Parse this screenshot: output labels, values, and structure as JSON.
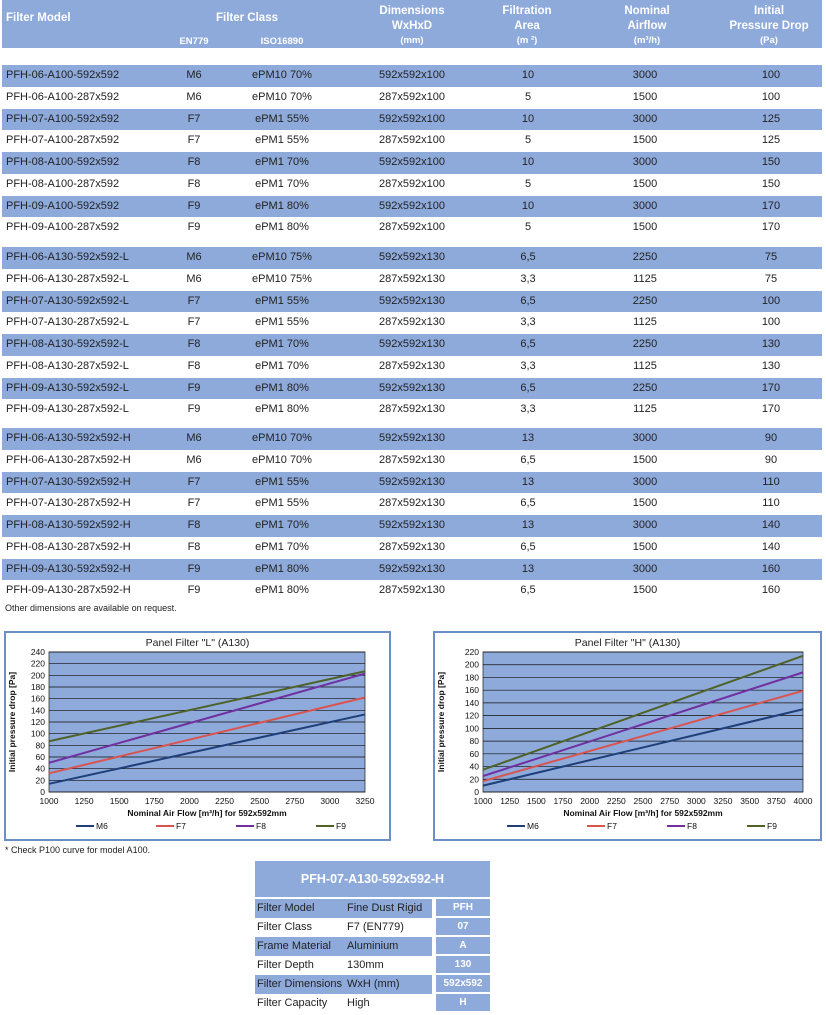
{
  "table": {
    "headers": {
      "model": "Filter Model",
      "filter_class": "Filter Class",
      "en779": "EN779",
      "iso16890": "ISO16890",
      "dimensions_l1": "Dimensions",
      "dimensions_l2": "WxHxD",
      "dimensions_unit": "(mm)",
      "area_l1": "Filtration",
      "area_l2": "Area",
      "area_unit": "(m ²)",
      "airflow_l1": "Nominal",
      "airflow_l2": "Airflow",
      "airflow_unit": "(m³/h)",
      "pressure_l1": "Initial",
      "pressure_l2": "Pressure Drop",
      "pressure_unit": "(Pa)"
    },
    "groups": [
      [
        [
          "PFH-06-A100-592x592",
          "M6",
          "ePM10 70%",
          "592x592x100",
          "10",
          "3000",
          "100"
        ],
        [
          "PFH-06-A100-287x592",
          "M6",
          "ePM10 70%",
          "287x592x100",
          "5",
          "1500",
          "100"
        ],
        [
          "PFH-07-A100-592x592",
          "F7",
          "ePM1 55%",
          "592x592x100",
          "10",
          "3000",
          "125"
        ],
        [
          "PFH-07-A100-287x592",
          "F7",
          "ePM1 55%",
          "287x592x100",
          "5",
          "1500",
          "125"
        ],
        [
          "PFH-08-A100-592x592",
          "F8",
          "ePM1 70%",
          "592x592x100",
          "10",
          "3000",
          "150"
        ],
        [
          "PFH-08-A100-287x592",
          "F8",
          "ePM1 70%",
          "287x592x100",
          "5",
          "1500",
          "150"
        ],
        [
          "PFH-09-A100-592x592",
          "F9",
          "ePM1 80%",
          "592x592x100",
          "10",
          "3000",
          "170"
        ],
        [
          "PFH-09-A100-287x592",
          "F9",
          "ePM1 80%",
          "287x592x100",
          "5",
          "1500",
          "170"
        ]
      ],
      [
        [
          "PFH-06-A130-592x592-L",
          "M6",
          "ePM10 75%",
          "592x592x130",
          "6,5",
          "2250",
          "75"
        ],
        [
          "PFH-06-A130-287x592-L",
          "M6",
          "ePM10 75%",
          "287x592x130",
          "3,3",
          "1125",
          "75"
        ],
        [
          "PFH-07-A130-592x592-L",
          "F7",
          "ePM1 55%",
          "592x592x130",
          "6,5",
          "2250",
          "100"
        ],
        [
          "PFH-07-A130-287x592-L",
          "F7",
          "ePM1 55%",
          "287x592x130",
          "3,3",
          "1125",
          "100"
        ],
        [
          "PFH-08-A130-592x592-L",
          "F8",
          "ePM1 70%",
          "592x592x130",
          "6,5",
          "2250",
          "130"
        ],
        [
          "PFH-08-A130-287x592-L",
          "F8",
          "ePM1 70%",
          "287x592x130",
          "3,3",
          "1125",
          "130"
        ],
        [
          "PFH-09-A130-592x592-L",
          "F9",
          "ePM1 80%",
          "592x592x130",
          "6,5",
          "2250",
          "170"
        ],
        [
          "PFH-09-A130-287x592-L",
          "F9",
          "ePM1 80%",
          "287x592x130",
          "3,3",
          "1125",
          "170"
        ]
      ],
      [
        [
          "PFH-06-A130-592x592-H",
          "M6",
          "ePM10 70%",
          "592x592x130",
          "13",
          "3000",
          "90"
        ],
        [
          "PFH-06-A130-287x592-H",
          "M6",
          "ePM10 70%",
          "287x592x130",
          "6,5",
          "1500",
          "90"
        ],
        [
          "PFH-07-A130-592x592-H",
          "F7",
          "ePM1 55%",
          "592x592x130",
          "13",
          "3000",
          "110"
        ],
        [
          "PFH-07-A130-287x592-H",
          "F7",
          "ePM1 55%",
          "287x592x130",
          "6,5",
          "1500",
          "110"
        ],
        [
          "PFH-08-A130-592x592-H",
          "F8",
          "ePM1 70%",
          "592x592x130",
          "13",
          "3000",
          "140"
        ],
        [
          "PFH-08-A130-287x592-H",
          "F8",
          "ePM1 70%",
          "287x592x130",
          "6,5",
          "1500",
          "140"
        ],
        [
          "PFH-09-A130-592x592-H",
          "F9",
          "ePM1 80%",
          "592x592x130",
          "13",
          "3000",
          "160"
        ],
        [
          "PFH-09-A130-287x592-H",
          "F9",
          "ePM1 80%",
          "287x592x130",
          "6,5",
          "1500",
          "160"
        ]
      ]
    ],
    "note": "Other dimensions are available on request."
  },
  "chart_note": "* Check P100 curve for model A100.",
  "chart_data": [
    {
      "type": "line",
      "title": "Panel Filter \"L\" (A130)",
      "xlabel": "Nominal Air Flow [m³/h] for 592x592mm",
      "ylabel": "Initial pressure drop [Pa]",
      "x": [
        1000,
        3250
      ],
      "xlim": [
        1000,
        3250
      ],
      "ylim": [
        0,
        240
      ],
      "xticks": [
        1000,
        1250,
        1500,
        1750,
        2000,
        2250,
        2500,
        2750,
        3000,
        3250
      ],
      "yticks": [
        0,
        20,
        40,
        60,
        80,
        100,
        120,
        140,
        160,
        180,
        200,
        220,
        240
      ],
      "grid": true,
      "legend": "bottom",
      "plot_bg": "#8eaadb",
      "series": [
        {
          "name": "M6",
          "color": "#1f3f7a",
          "values": [
            14,
            133
          ]
        },
        {
          "name": "F7",
          "color": "#d9534f",
          "values": [
            32,
            162
          ]
        },
        {
          "name": "F8",
          "color": "#7030a0",
          "values": [
            50,
            203
          ]
        },
        {
          "name": "F9",
          "color": "#4f6228",
          "values": [
            87,
            207
          ]
        }
      ]
    },
    {
      "type": "line",
      "title": "Panel Filter \"H\" (A130)",
      "xlabel": "Nominal Air Flow [m³/h] for 592x592mm",
      "ylabel": "Initial pressure drop [Pa]",
      "x": [
        1000,
        4000
      ],
      "xlim": [
        1000,
        4000
      ],
      "ylim": [
        0,
        220
      ],
      "xticks": [
        1000,
        1250,
        1500,
        1750,
        2000,
        2250,
        2500,
        2750,
        3000,
        3250,
        3500,
        3750,
        4000
      ],
      "yticks": [
        0,
        20,
        40,
        60,
        80,
        100,
        120,
        140,
        160,
        180,
        200,
        220
      ],
      "grid": true,
      "legend": "bottom",
      "plot_bg": "#8eaadb",
      "series": [
        {
          "name": "M6",
          "color": "#1f3f7a",
          "values": [
            10,
            130
          ]
        },
        {
          "name": "F7",
          "color": "#d9534f",
          "values": [
            17,
            159
          ]
        },
        {
          "name": "F8",
          "color": "#7030a0",
          "values": [
            25,
            188
          ]
        },
        {
          "name": "F9",
          "color": "#4f6228",
          "values": [
            35,
            214
          ]
        }
      ]
    }
  ],
  "model_code": {
    "title": "PFH-07-A130-592x592-H",
    "rows": [
      {
        "label": "Filter Model",
        "value": "Fine Dust Rigid",
        "code": "PFH"
      },
      {
        "label": "Filter Class",
        "value": "F7 (EN779)",
        "code": "07"
      },
      {
        "label": "Frame Material",
        "value": "Aluminium",
        "code": "A"
      },
      {
        "label": "Filter Depth",
        "value": "130mm",
        "code": "130"
      },
      {
        "label": "Filter Dimensions",
        "value": "WxH (mm)",
        "code": "592x592"
      },
      {
        "label": "Filter Capacity",
        "value": "High",
        "code": "H"
      }
    ]
  }
}
